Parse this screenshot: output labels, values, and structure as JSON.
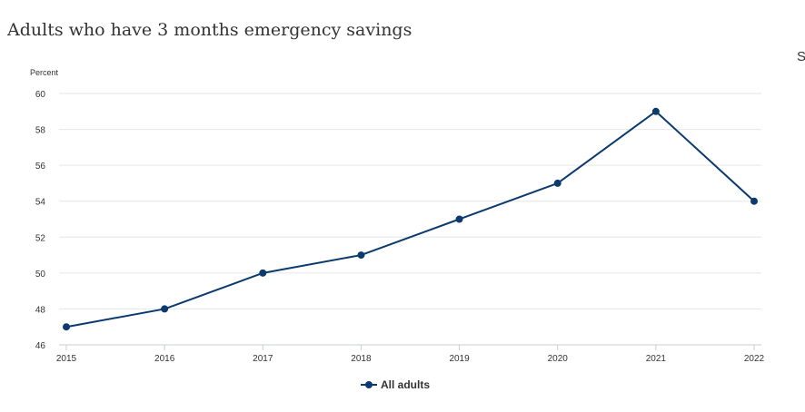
{
  "title": "Adults who have 3 months emergency savings",
  "edge_text": "S",
  "chart_data": {
    "type": "line",
    "title": "Adults who have 3 months emergency savings",
    "ylabel": "Percent",
    "xlabel": "",
    "x": [
      "2015",
      "2016",
      "2017",
      "2018",
      "2019",
      "2020",
      "2021",
      "2022"
    ],
    "series": [
      {
        "name": "All adults",
        "values": [
          47,
          48,
          50,
          51,
          53,
          55,
          59,
          54
        ],
        "color": "#0b3a6e"
      }
    ],
    "ylim": [
      46,
      60
    ],
    "yticks": [
      46,
      48,
      50,
      52,
      54,
      56,
      58,
      60
    ],
    "grid": true,
    "legend": "bottom"
  }
}
